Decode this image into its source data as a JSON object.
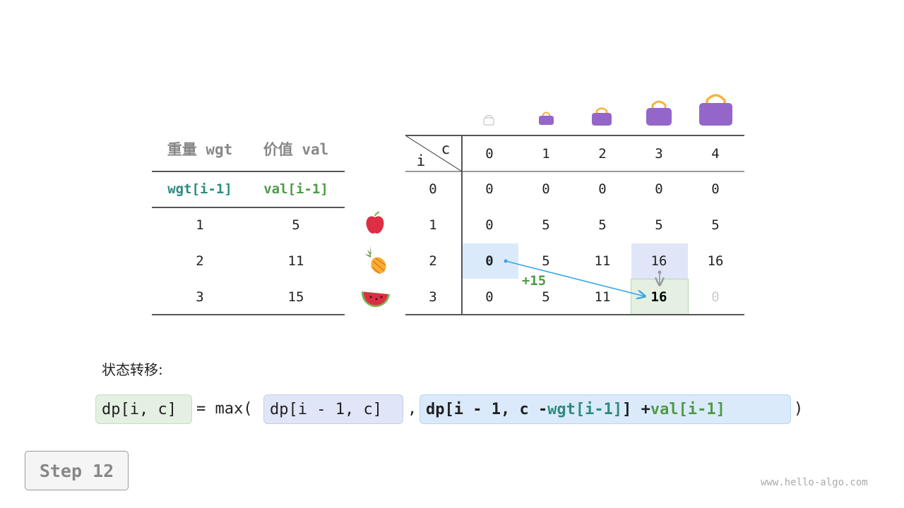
{
  "left_table": {
    "headers": [
      "重量 wgt",
      "价值 val"
    ],
    "subheaders": [
      "wgt[i-1]",
      "val[i-1]"
    ],
    "rows": [
      [
        "1",
        "5"
      ],
      [
        "2",
        "11"
      ],
      [
        "3",
        "15"
      ]
    ]
  },
  "items": [
    "apple",
    "pineapple",
    "watermelon"
  ],
  "dp_table": {
    "corner_c": "c",
    "corner_i": "i",
    "capacities": [
      "0",
      "1",
      "2",
      "3",
      "4"
    ],
    "row_labels": [
      "0",
      "1",
      "2",
      "3"
    ],
    "rows": [
      [
        "0",
        "0",
        "0",
        "0",
        "0"
      ],
      [
        "0",
        "5",
        "5",
        "5",
        "5"
      ],
      [
        "0",
        "5",
        "11",
        "16",
        "16"
      ],
      [
        "0",
        "5",
        "11",
        "16",
        "0"
      ]
    ]
  },
  "annotation": "+15",
  "transition_label": "状态转移:",
  "formula": {
    "lhs": "dp[i, c]",
    "eq": "= max(",
    "opt1": "dp[i - 1, c]",
    "comma": ",",
    "opt2_a": "dp[i - 1, c - ",
    "opt2_wgt": "wgt[i-1]",
    "opt2_b": "] + ",
    "opt2_val": "val[i-1]",
    "close": ")"
  },
  "step": "Step 12",
  "watermark": "www.hello-algo.com",
  "colors": {
    "teal": "#2e8b80",
    "green": "#4f9a48",
    "blue_hl": "#dbeafa",
    "purple_hl": "#e1e5f8",
    "green_hl": "#e3f0e2",
    "arrow": "#3ba3e6"
  }
}
